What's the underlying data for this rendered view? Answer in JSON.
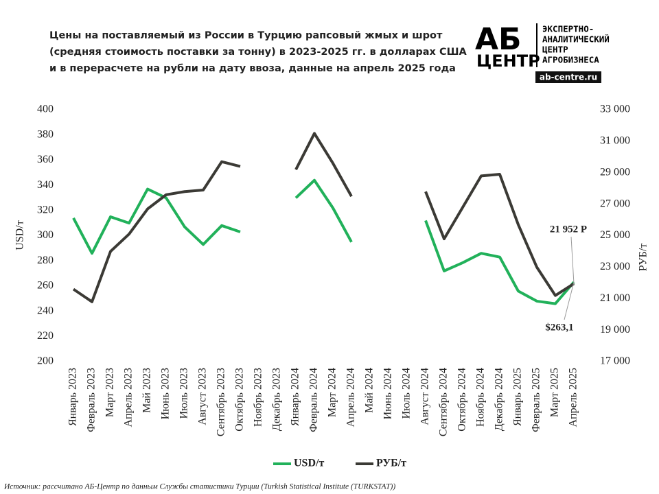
{
  "chart_data": {
    "type": "line",
    "title": [
      "Цены на поставляемый из России в Турцию рапсовый жмых и шрот",
      "(средняя стоимость поставки за тонну) в 2023-2025 гг. в долларах США",
      "и в перерасчете на рубли на дату ввоза, данные на апрель 2025 года"
    ],
    "logo": {
      "mark": "АБ",
      "word": "ЦЕНТР",
      "lines": [
        "ЭКСПЕРТНО-",
        "АНАЛИТИЧЕСКИЙ",
        "ЦЕНТР",
        "АГРОБИЗНЕСА"
      ],
      "site": "ab-centre.ru"
    },
    "categories": [
      "Январь 2023",
      "Февраль 2023",
      "Март 2023",
      "Апрель 2023",
      "Май 2023",
      "Июнь 2023",
      "Июль 2023",
      "Август 2023",
      "Сентябрь 2023",
      "Октябрь 2023",
      "Ноябрь 2023",
      "Декабрь 2023",
      "Январь 2024",
      "Февраль 2024",
      "Март 2024",
      "Апрель 2024",
      "Май 2024",
      "Июнь 2024",
      "Июль 2024",
      "Август 2024",
      "Сентябрь 2024",
      "Октябрь 2024",
      "Ноябрь 2024",
      "Декабрь 2024",
      "Январь 2025",
      "Февраль 2025",
      "Март 2025",
      "Апрель 2025"
    ],
    "series": [
      {
        "name": "USD/т",
        "color": "#21b15a",
        "values": [
          314,
          286,
          315,
          310,
          337,
          330,
          307,
          293,
          308,
          303,
          null,
          null,
          330,
          344,
          322,
          295,
          null,
          null,
          null,
          312,
          272,
          278.5,
          286,
          283,
          256,
          248,
          246,
          263.1
        ],
        "value_labels": [
          null,
          null,
          null,
          null,
          null,
          null,
          null,
          null,
          null,
          null,
          null,
          null,
          null,
          null,
          null,
          null,
          null,
          null,
          null,
          null,
          null,
          null,
          null,
          null,
          null,
          null,
          null,
          "$263,1"
        ]
      },
      {
        "name": "РУБ/т",
        "color": "#3b3a35",
        "axis": "y2",
        "values": [
          21600,
          20800,
          24000,
          25100,
          26700,
          27600,
          27800,
          27900,
          29700,
          29400,
          null,
          null,
          29200,
          31500,
          29600,
          27500,
          null,
          null,
          null,
          27800,
          24800,
          26800,
          28800,
          28900,
          25700,
          23000,
          21200,
          21952
        ],
        "value_labels": [
          null,
          null,
          null,
          null,
          null,
          null,
          null,
          null,
          null,
          null,
          null,
          null,
          null,
          null,
          null,
          null,
          null,
          null,
          null,
          null,
          null,
          null,
          null,
          null,
          null,
          null,
          null,
          "21 952 Р"
        ]
      }
    ],
    "ylabel": "USD/т",
    "y2label": "РУБ/т",
    "ylim": [
      200,
      400
    ],
    "yticks": [
      200,
      220,
      240,
      260,
      280,
      300,
      320,
      340,
      360,
      380,
      400
    ],
    "y2lim": [
      17000,
      33000
    ],
    "y2ticks": [
      {
        "value": 17000,
        "label": "17 000"
      },
      {
        "value": 19000,
        "label": "19 000"
      },
      {
        "value": 21000,
        "label": "21 000"
      },
      {
        "value": 23000,
        "label": "23 000"
      },
      {
        "value": 25000,
        "label": "25 000"
      },
      {
        "value": 27000,
        "label": "27 000"
      },
      {
        "value": 29000,
        "label": "29 000"
      },
      {
        "value": 31000,
        "label": "31 000"
      },
      {
        "value": 33000,
        "label": "33 000"
      }
    ],
    "grid": false,
    "legend": "bottom",
    "source": "Источник: рассчитано АБ-Центр по данным Службы статистики Турции (Turkish Statistical Institute (TURKSTAT))"
  }
}
